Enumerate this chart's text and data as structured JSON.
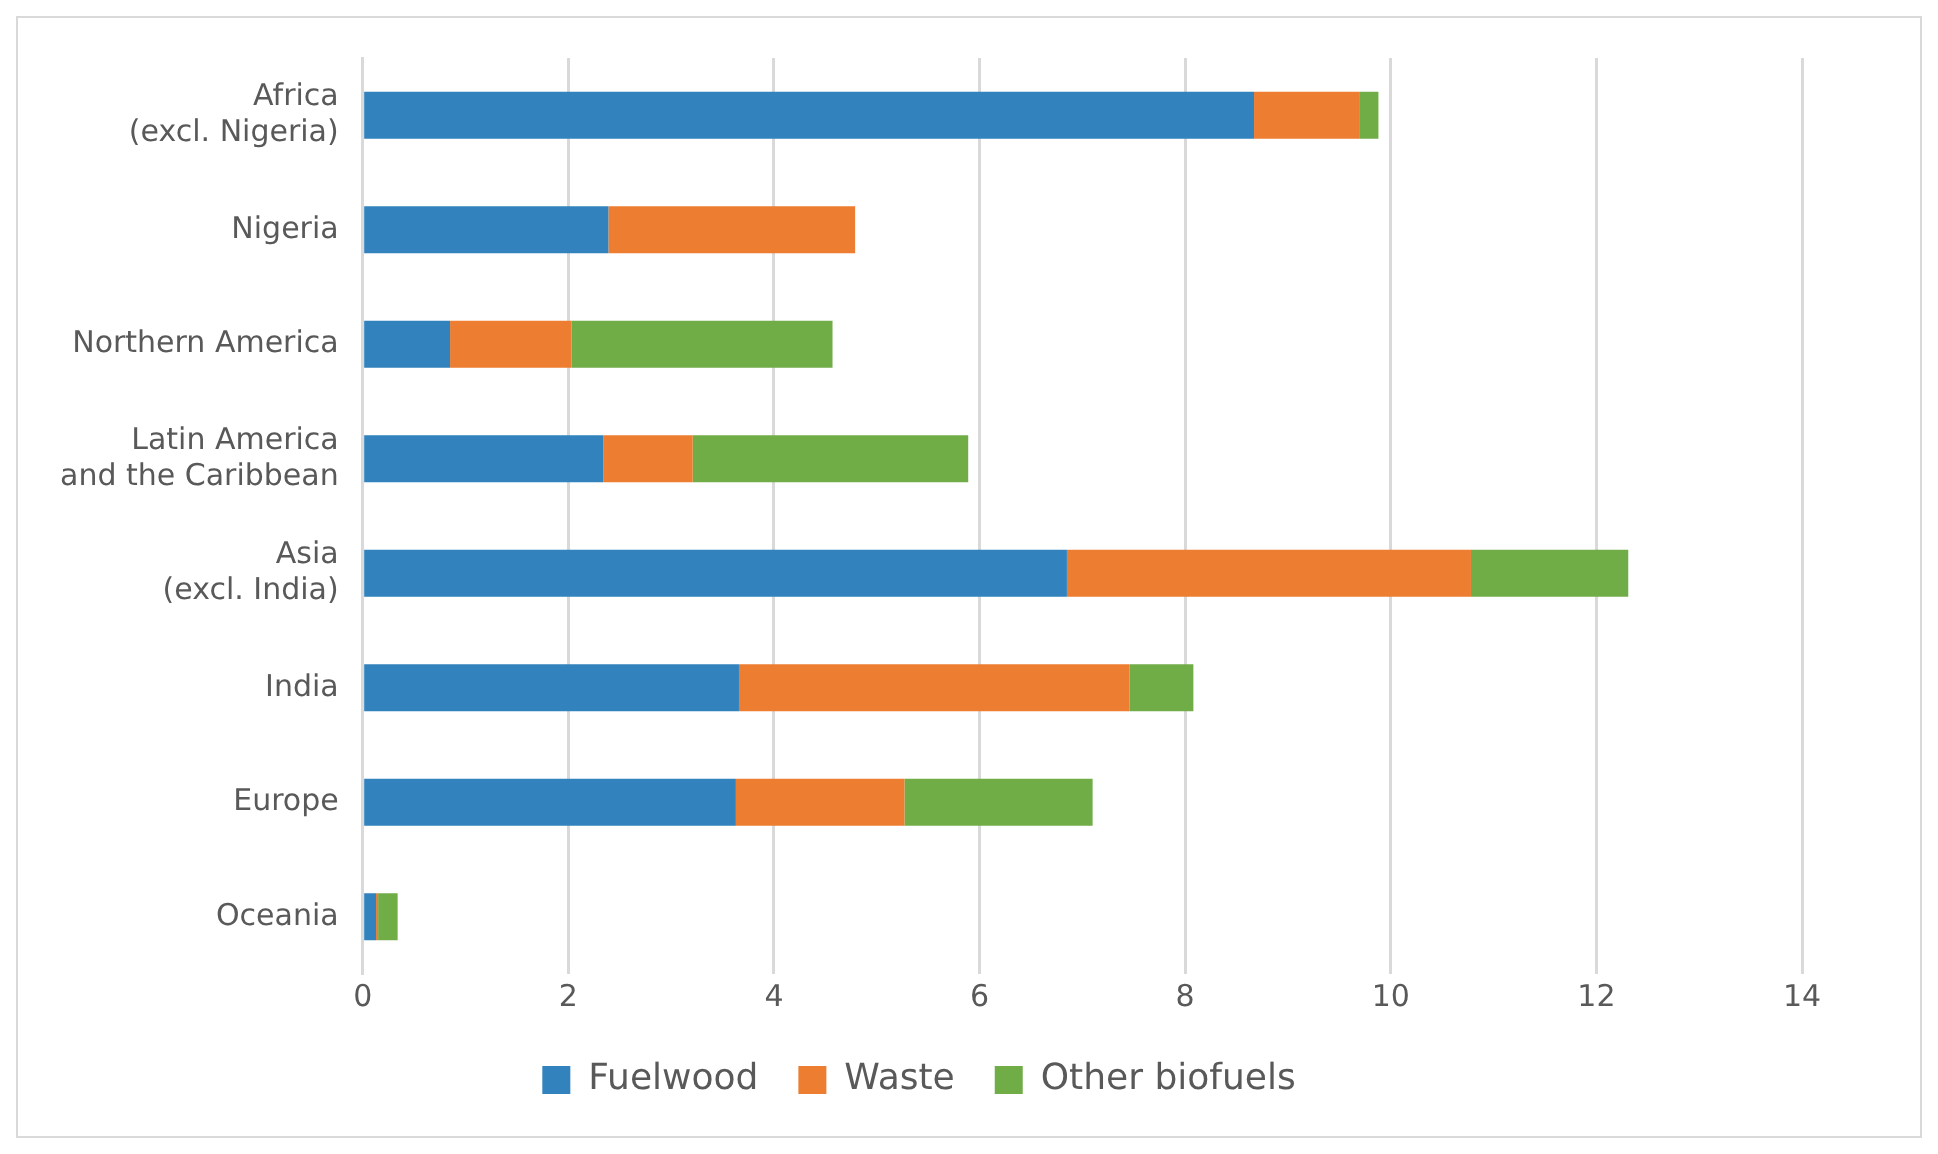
{
  "chart_data": {
    "type": "bar",
    "orientation": "horizontal",
    "stacked": true,
    "categories": [
      "Africa\n(excl. Nigeria)",
      "Nigeria",
      "Northern America",
      "Latin America\nand the Caribbean",
      "Asia\n(excl. India)",
      "India",
      "Europe",
      "Oceania"
    ],
    "series": [
      {
        "name": "Fuelwood",
        "color": "#3182bd",
        "values": [
          8.67,
          2.39,
          0.85,
          2.34,
          6.85,
          3.66,
          3.63,
          0.13
        ]
      },
      {
        "name": "Waste",
        "color": "#ed7d31",
        "values": [
          1.03,
          2.4,
          1.18,
          0.87,
          3.93,
          3.8,
          1.64,
          0.02
        ]
      },
      {
        "name": "Other biofuels",
        "color": "#70ad47",
        "values": [
          0.18,
          0,
          2.54,
          2.68,
          1.53,
          0.62,
          1.83,
          0.19
        ]
      }
    ],
    "xlim": [
      0,
      14
    ],
    "xticks": [
      0,
      2,
      4,
      6,
      8,
      10,
      12,
      14
    ],
    "grid": "x",
    "legend": "bottom"
  }
}
